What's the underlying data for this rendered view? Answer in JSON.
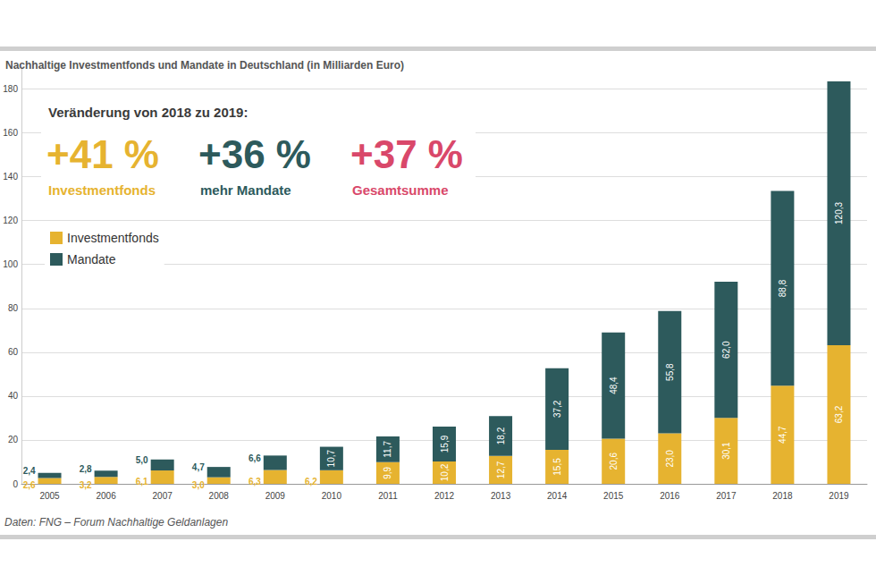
{
  "chart_data": {
    "type": "bar",
    "title": "Nachhaltige Investmentfonds und Mandate in Deutschland (in Milliarden Euro)",
    "source": "Daten: FNG – Forum Nachhaltige Geldanlagen",
    "annotation_heading": "Veränderung von 2018 zu 2019:",
    "annotations": [
      {
        "text": "+41 %",
        "caption": "Investmentfonds",
        "color": "#e6b330"
      },
      {
        "text": "+36 %",
        "caption": "mehr Mandate",
        "color": "#2d5a5c"
      },
      {
        "text": "+37 %",
        "caption": "Gesamtsumme",
        "color": "#d9486a"
      }
    ],
    "categories": [
      "2005",
      "2006",
      "2007",
      "2008",
      "2009",
      "2010",
      "2011",
      "2012",
      "2013",
      "2014",
      "2015",
      "2016",
      "2017",
      "2018",
      "2019"
    ],
    "series": [
      {
        "name": "Investmentfonds",
        "color": "#e6b330",
        "values": [
          2.6,
          3.2,
          6.1,
          3.0,
          6.3,
          6.2,
          9.9,
          10.2,
          12.7,
          15.5,
          20.6,
          23.0,
          30.1,
          44.7,
          63.2
        ],
        "value_labels": [
          "2,6",
          "3,2",
          "6,1",
          "3,0",
          "6,3",
          "6,2",
          "9,9",
          "10,2",
          "12,7",
          "15,5",
          "20,6",
          "23,0",
          "30,1",
          "44,7",
          "63,2"
        ]
      },
      {
        "name": "Mandate",
        "color": "#2d5a5c",
        "values": [
          2.4,
          2.8,
          5.0,
          4.7,
          6.6,
          10.7,
          11.7,
          15.9,
          18.2,
          37.2,
          48.4,
          55.8,
          62.0,
          88.8,
          120.3
        ],
        "value_labels": [
          "2,4",
          "2,8",
          "5,0",
          "4,7",
          "6,6",
          "10,7",
          "11,7",
          "15,9",
          "18,2",
          "37,2",
          "48,4",
          "55,8",
          "62,0",
          "88,8",
          "120,3"
        ]
      }
    ],
    "totals": {
      "color": "#d9486a",
      "values": [
        5.0,
        6.0,
        11.1,
        7.7,
        12.9,
        16.9,
        21.6,
        26.1,
        30.9,
        52.7,
        69.0,
        78.8,
        92.1,
        133.5,
        183.5
      ],
      "value_labels": [
        "5,0",
        "6,0",
        "11,1",
        "7,7",
        "12,9",
        "16,9",
        "21,6",
        "26,1",
        "30,9",
        "52,7",
        "69,0",
        "78,8",
        "92,1",
        "133,5",
        "183,5"
      ]
    },
    "ylim": [
      0,
      190
    ],
    "yticks": [
      0,
      20,
      40,
      60,
      80,
      100,
      120,
      140,
      160,
      180
    ],
    "grid": true,
    "stacked": true,
    "data_labels": true,
    "legend": "upper left"
  }
}
